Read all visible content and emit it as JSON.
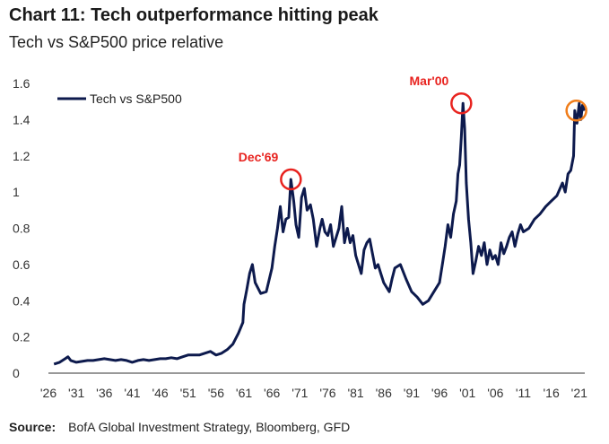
{
  "header": {
    "title": "Chart 11: Tech outperformance hitting peak",
    "subtitle": "Tech vs S&P500 price relative"
  },
  "footer": {
    "source_label": "Source:",
    "source_text": "BofA Global Investment Strategy, Bloomberg, GFD"
  },
  "colors": {
    "series": "#0d1a4d",
    "annotation_red": "#e8231f",
    "annotation_orange": "#f07d1a",
    "axis": "#333333"
  },
  "chart_data": {
    "type": "line",
    "title": "Chart 11: Tech outperformance hitting peak",
    "subtitle": "Tech vs S&P500 price relative",
    "xlabel": "",
    "ylabel": "",
    "xlim": [
      1926,
      2022
    ],
    "ylim": [
      0,
      1.6
    ],
    "yticks": [
      "0",
      "0.2",
      "0.4",
      "0.6",
      "0.8",
      "1",
      "1.2",
      "1.4",
      "1.6"
    ],
    "xticks": [
      "'26",
      "'31",
      "'36",
      "'41",
      "'46",
      "'51",
      "'56",
      "'61",
      "'66",
      "'71",
      "'76",
      "'81",
      "'86",
      "'91",
      "'96",
      "'01",
      "'06",
      "'11",
      "'16",
      "'21"
    ],
    "grid": false,
    "legend": {
      "placement": "top-left",
      "entries": [
        "Tech vs S&P500"
      ]
    },
    "series": [
      {
        "name": "Tech vs S&P500",
        "x": [
          1927,
          1928,
          1929,
          1929.5,
          1930,
          1931,
          1932,
          1933,
          1934,
          1935,
          1936,
          1937,
          1938,
          1939,
          1940,
          1941,
          1942,
          1943,
          1944,
          1945,
          1946,
          1947,
          1948,
          1949,
          1950,
          1951,
          1952,
          1953,
          1954,
          1955,
          1956,
          1957,
          1958,
          1959,
          1960,
          1960.8,
          1961,
          1961.5,
          1962,
          1962.5,
          1963,
          1964,
          1965,
          1966,
          1966.5,
          1967,
          1967.5,
          1968,
          1968.5,
          1969,
          1969.4,
          1969.9,
          1970.3,
          1970.8,
          1971.3,
          1971.8,
          1972.3,
          1972.9,
          1973.4,
          1974,
          1974.6,
          1975,
          1975.5,
          1976,
          1976.5,
          1977,
          1977.5,
          1978,
          1978.5,
          1979,
          1979.5,
          1980,
          1980.5,
          1981,
          1981.5,
          1982,
          1982.5,
          1983,
          1983.5,
          1984,
          1984.5,
          1985,
          1985.5,
          1986,
          1987,
          1987.5,
          1988,
          1989,
          1990,
          1991,
          1992,
          1993,
          1994,
          1995,
          1996,
          1996.5,
          1997,
          1997.5,
          1998,
          1998.5,
          1999,
          1999.3,
          1999.6,
          1999.9,
          2000.2,
          2000.5,
          2000.8,
          2001.2,
          2001.6,
          2002,
          2002.5,
          2003,
          2003.5,
          2004,
          2004.5,
          2005,
          2005.5,
          2006,
          2006.5,
          2007,
          2007.5,
          2008,
          2008.5,
          2009,
          2009.5,
          2010,
          2010.5,
          2011,
          2012,
          2013,
          2014,
          2015,
          2016,
          2017,
          2018,
          2018.5,
          2019,
          2019.5,
          2020,
          2020.2,
          2020.6,
          2021,
          2021.3,
          2021.6,
          2022
        ],
        "values": [
          0.05,
          0.06,
          0.08,
          0.09,
          0.07,
          0.06,
          0.065,
          0.07,
          0.07,
          0.075,
          0.08,
          0.075,
          0.07,
          0.075,
          0.07,
          0.06,
          0.07,
          0.075,
          0.07,
          0.075,
          0.08,
          0.08,
          0.085,
          0.08,
          0.09,
          0.1,
          0.1,
          0.1,
          0.11,
          0.12,
          0.1,
          0.11,
          0.13,
          0.16,
          0.22,
          0.28,
          0.38,
          0.46,
          0.55,
          0.6,
          0.5,
          0.44,
          0.45,
          0.58,
          0.7,
          0.8,
          0.92,
          0.78,
          0.85,
          0.86,
          1.07,
          0.95,
          0.82,
          0.75,
          0.97,
          1.02,
          0.9,
          0.93,
          0.85,
          0.7,
          0.8,
          0.85,
          0.78,
          0.76,
          0.82,
          0.7,
          0.75,
          0.8,
          0.92,
          0.72,
          0.8,
          0.72,
          0.76,
          0.65,
          0.6,
          0.55,
          0.68,
          0.72,
          0.74,
          0.66,
          0.58,
          0.6,
          0.55,
          0.5,
          0.45,
          0.52,
          0.58,
          0.6,
          0.52,
          0.45,
          0.42,
          0.38,
          0.4,
          0.45,
          0.5,
          0.6,
          0.7,
          0.82,
          0.75,
          0.88,
          0.95,
          1.1,
          1.15,
          1.3,
          1.49,
          1.35,
          1.05,
          0.85,
          0.72,
          0.55,
          0.62,
          0.7,
          0.65,
          0.72,
          0.6,
          0.68,
          0.63,
          0.65,
          0.6,
          0.72,
          0.66,
          0.7,
          0.75,
          0.78,
          0.7,
          0.77,
          0.82,
          0.78,
          0.8,
          0.85,
          0.88,
          0.92,
          0.95,
          0.98,
          1.05,
          1.0,
          1.1,
          1.12,
          1.2,
          1.45,
          1.38,
          1.49,
          1.4,
          1.48,
          1.45
        ],
        "color": "#0d1a4d"
      }
    ],
    "annotations": [
      {
        "label": "Dec'69",
        "x": 1969.4,
        "y": 1.07,
        "color": "#e8231f"
      },
      {
        "label": "Mar'00",
        "x": 1999.9,
        "y": 1.49,
        "color": "#e8231f"
      },
      {
        "x": 2020.5,
        "y": 1.45,
        "color": "#f07d1a"
      }
    ]
  }
}
